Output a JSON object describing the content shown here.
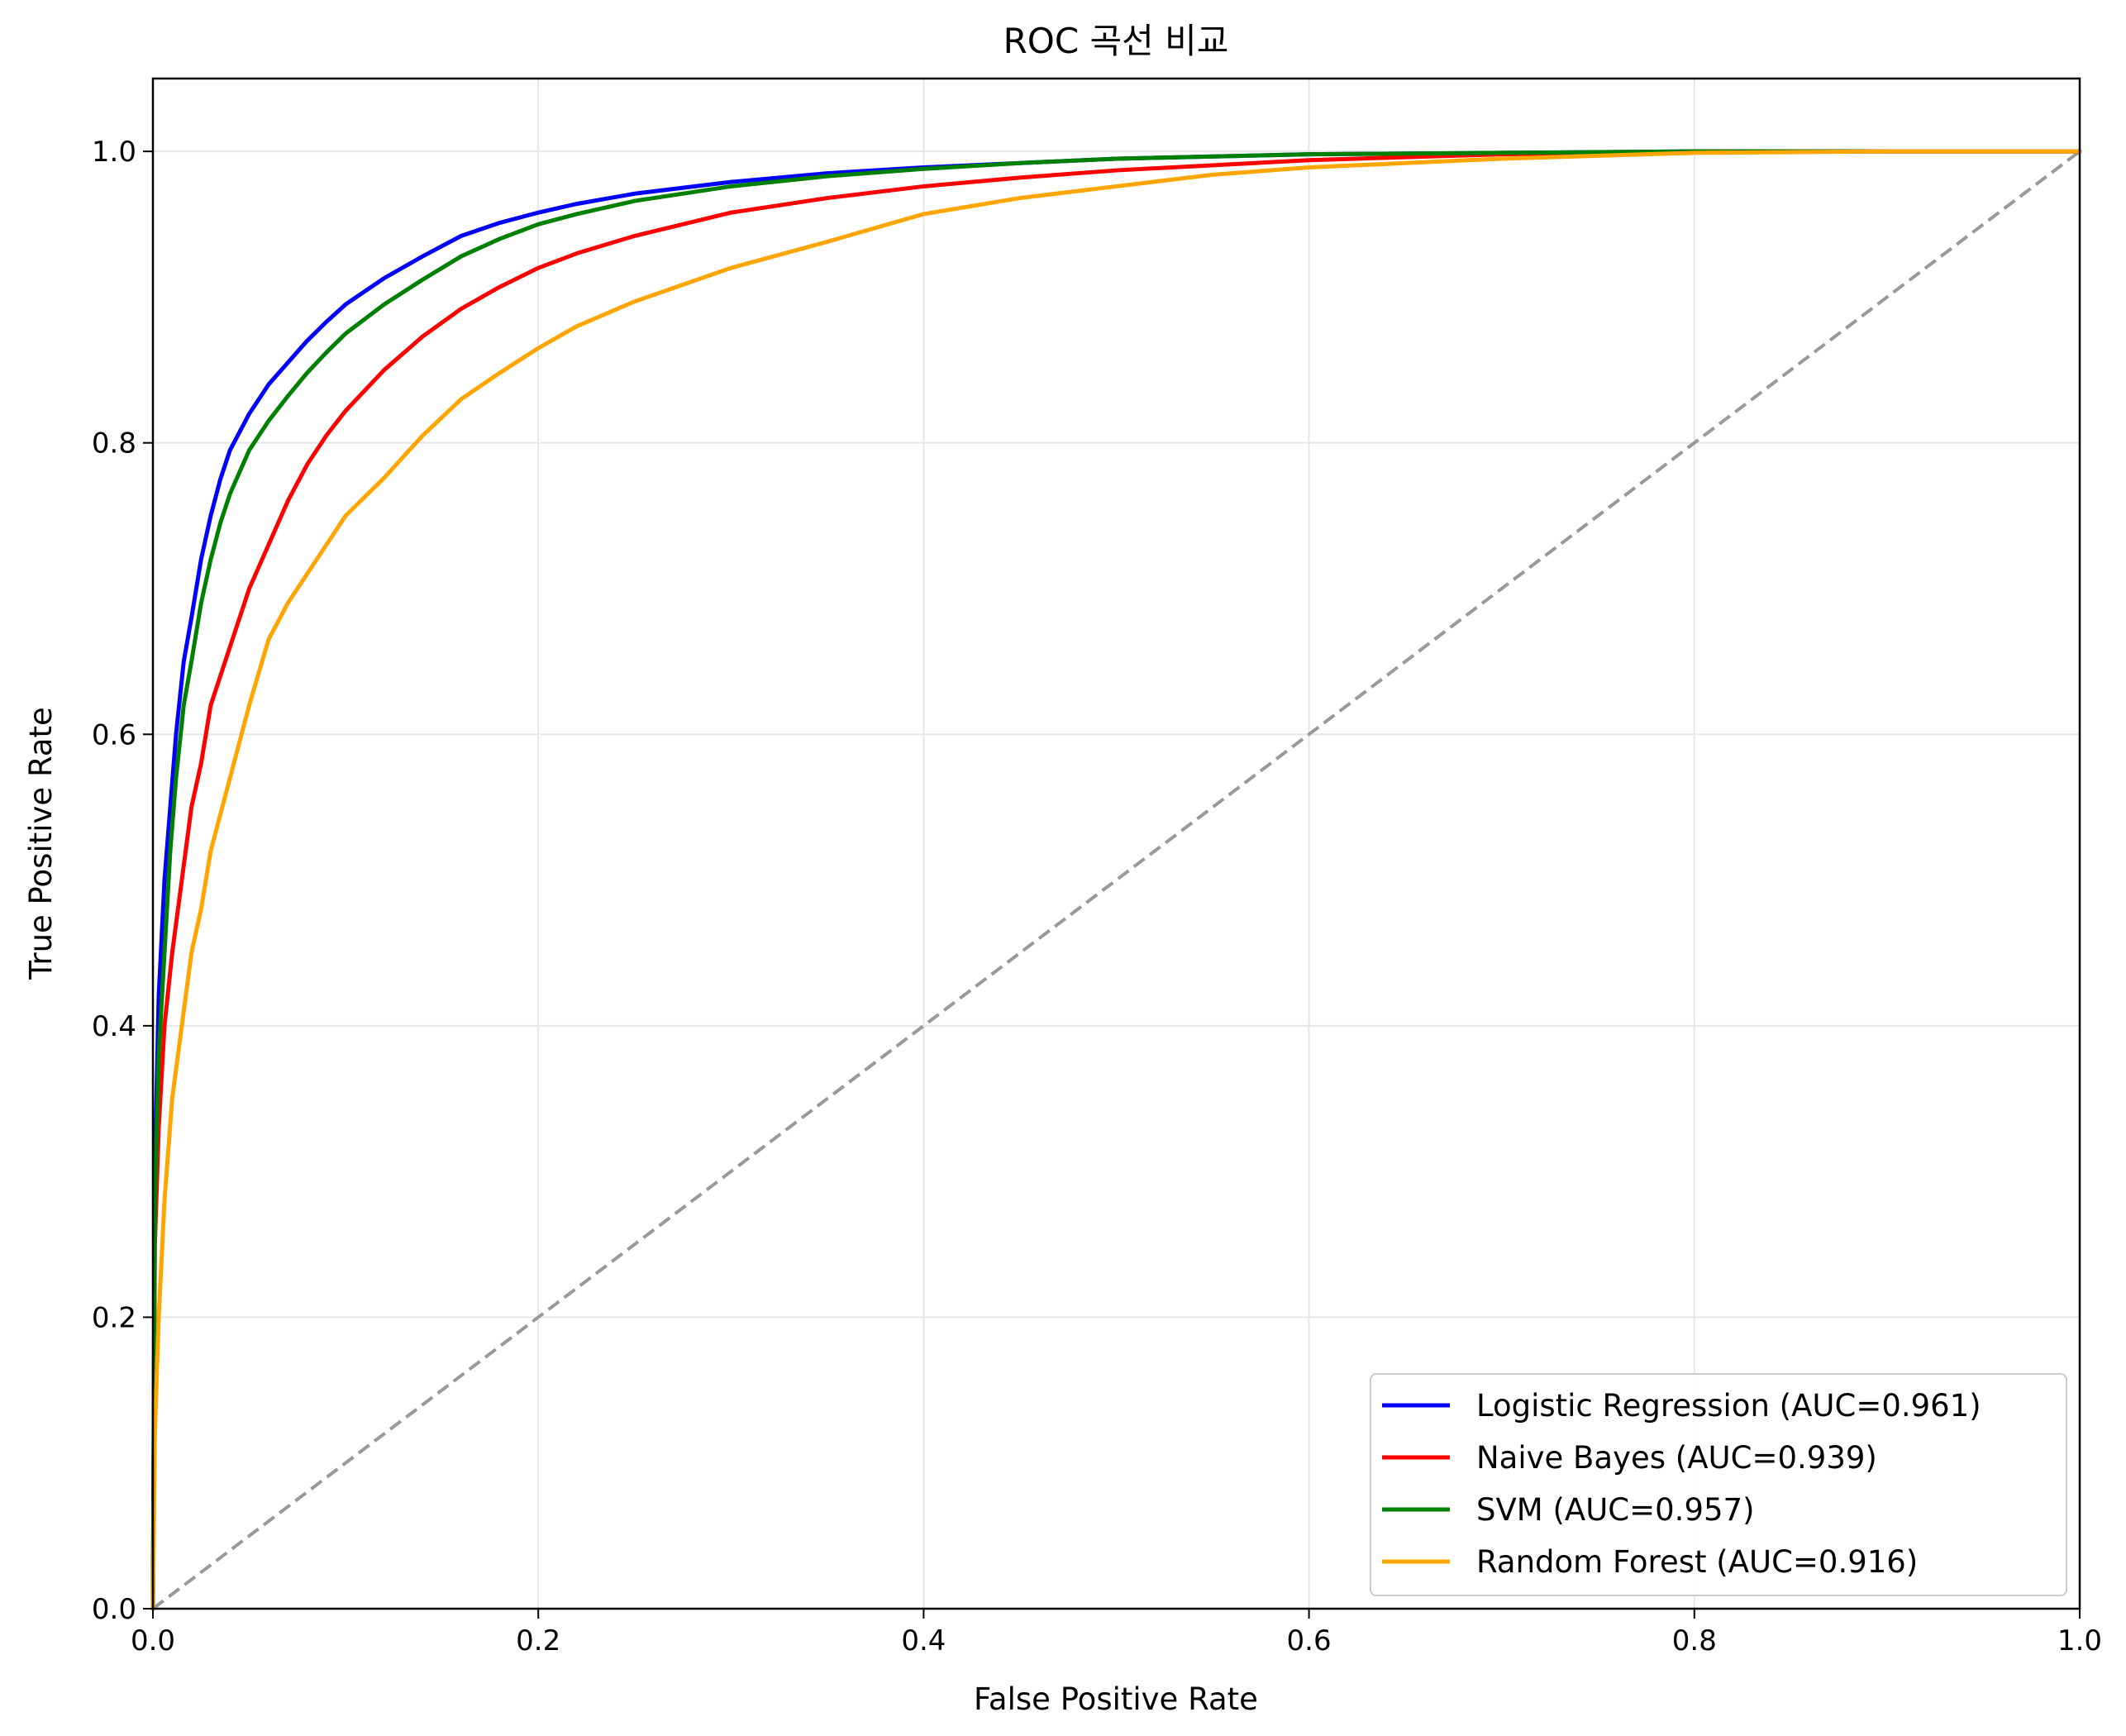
{
  "chart_data": {
    "type": "line",
    "title": "ROC 곡선 비교",
    "xlabel": "False Positive Rate",
    "ylabel": "True Positive Rate",
    "xlim": [
      0.0,
      1.0
    ],
    "ylim": [
      0.0,
      1.05
    ],
    "xticks": [
      "0.0",
      "0.2",
      "0.4",
      "0.6",
      "0.8",
      "1.0"
    ],
    "yticks": [
      "0.0",
      "0.2",
      "0.4",
      "0.6",
      "0.8",
      "1.0"
    ],
    "grid": true,
    "legend_position": "lower-right",
    "series": [
      {
        "name": "Logistic Regression (AUC=0.961)",
        "color": "#0000ff",
        "x": [
          0.0,
          0.001,
          0.003,
          0.006,
          0.009,
          0.012,
          0.016,
          0.02,
          0.025,
          0.03,
          0.035,
          0.04,
          0.05,
          0.06,
          0.07,
          0.08,
          0.09,
          0.1,
          0.12,
          0.14,
          0.16,
          0.18,
          0.2,
          0.22,
          0.25,
          0.3,
          0.35,
          0.4,
          0.45,
          0.5,
          0.6,
          0.7,
          0.8,
          0.9,
          1.0
        ],
        "y": [
          0.0,
          0.3,
          0.42,
          0.5,
          0.55,
          0.6,
          0.65,
          0.68,
          0.72,
          0.75,
          0.775,
          0.795,
          0.82,
          0.84,
          0.855,
          0.87,
          0.883,
          0.895,
          0.913,
          0.928,
          0.942,
          0.951,
          0.958,
          0.964,
          0.971,
          0.979,
          0.985,
          0.989,
          0.992,
          0.995,
          0.998,
          0.999,
          1.0,
          1.0,
          1.0
        ]
      },
      {
        "name": "Naive Bayes (AUC=0.939)",
        "color": "#ff0000",
        "x": [
          0.0,
          0.001,
          0.003,
          0.006,
          0.01,
          0.015,
          0.02,
          0.025,
          0.03,
          0.04,
          0.05,
          0.06,
          0.07,
          0.08,
          0.09,
          0.1,
          0.12,
          0.14,
          0.16,
          0.18,
          0.2,
          0.22,
          0.25,
          0.3,
          0.35,
          0.4,
          0.45,
          0.5,
          0.6,
          0.7,
          0.8,
          0.9,
          1.0
        ],
        "y": [
          0.0,
          0.25,
          0.33,
          0.4,
          0.45,
          0.5,
          0.55,
          0.58,
          0.62,
          0.66,
          0.7,
          0.73,
          0.76,
          0.785,
          0.805,
          0.822,
          0.85,
          0.873,
          0.892,
          0.907,
          0.92,
          0.93,
          0.942,
          0.958,
          0.968,
          0.976,
          0.982,
          0.987,
          0.994,
          0.998,
          1.0,
          1.0,
          1.0
        ]
      },
      {
        "name": "SVM (AUC=0.957)",
        "color": "#008000",
        "x": [
          0.0,
          0.001,
          0.003,
          0.006,
          0.009,
          0.012,
          0.016,
          0.02,
          0.025,
          0.03,
          0.035,
          0.04,
          0.05,
          0.06,
          0.07,
          0.08,
          0.09,
          0.1,
          0.12,
          0.14,
          0.16,
          0.18,
          0.2,
          0.22,
          0.25,
          0.3,
          0.35,
          0.4,
          0.45,
          0.5,
          0.6,
          0.7,
          0.8,
          0.9,
          1.0
        ],
        "y": [
          0.0,
          0.28,
          0.38,
          0.45,
          0.52,
          0.57,
          0.62,
          0.65,
          0.69,
          0.72,
          0.745,
          0.765,
          0.795,
          0.815,
          0.832,
          0.848,
          0.862,
          0.875,
          0.895,
          0.912,
          0.928,
          0.94,
          0.95,
          0.957,
          0.966,
          0.976,
          0.983,
          0.988,
          0.992,
          0.995,
          0.998,
          0.999,
          1.0,
          1.0,
          1.0
        ]
      },
      {
        "name": "Random Forest (AUC=0.916)",
        "color": "#ffa500",
        "x": [
          0.0,
          0.001,
          0.003,
          0.006,
          0.01,
          0.015,
          0.02,
          0.025,
          0.03,
          0.04,
          0.05,
          0.06,
          0.07,
          0.08,
          0.09,
          0.1,
          0.12,
          0.14,
          0.16,
          0.18,
          0.2,
          0.22,
          0.25,
          0.3,
          0.35,
          0.4,
          0.45,
          0.5,
          0.55,
          0.6,
          0.7,
          0.8,
          0.9,
          1.0
        ],
        "y": [
          0.0,
          0.12,
          0.2,
          0.28,
          0.35,
          0.4,
          0.45,
          0.48,
          0.52,
          0.57,
          0.62,
          0.665,
          0.69,
          0.71,
          0.73,
          0.75,
          0.776,
          0.805,
          0.83,
          0.848,
          0.865,
          0.88,
          0.897,
          0.92,
          0.938,
          0.957,
          0.968,
          0.976,
          0.984,
          0.989,
          0.995,
          0.999,
          1.0,
          1.0
        ]
      }
    ],
    "reference_line": {
      "color": "#999999",
      "x": [
        0.0,
        1.0
      ],
      "y": [
        0.0,
        1.0
      ]
    }
  }
}
